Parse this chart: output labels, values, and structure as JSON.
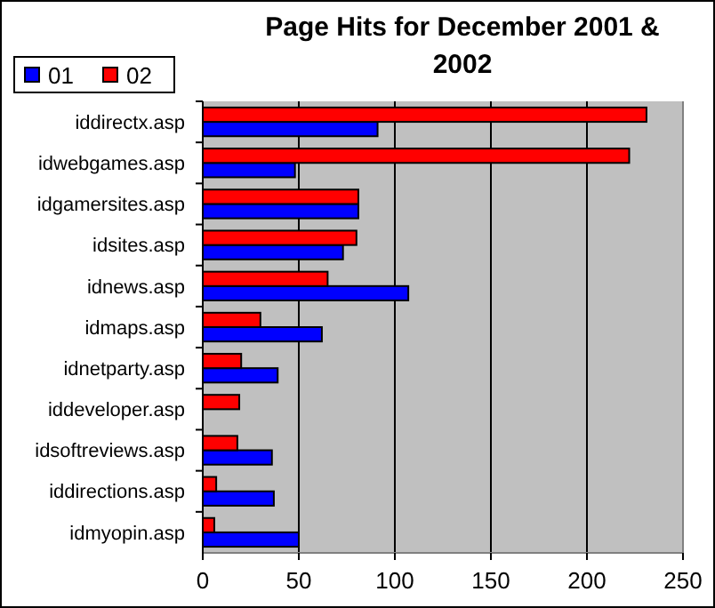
{
  "chart_data": {
    "type": "bar",
    "orientation": "horizontal",
    "title": "Page Hits for December 2001 & 2002",
    "categories": [
      "iddirectx.asp",
      "idwebgames.asp",
      "idgamersites.asp",
      "idsites.asp",
      "idnews.asp",
      "idmaps.asp",
      "idnetparty.asp",
      "iddeveloper.asp",
      "idsoftreviews.asp",
      "iddirections.asp",
      "idmyopin.asp"
    ],
    "series": [
      {
        "name": "01",
        "color": "#0000ff",
        "values": [
          91,
          48,
          81,
          73,
          107,
          62,
          39,
          null,
          36,
          37,
          50
        ]
      },
      {
        "name": "02",
        "color": "#ff0000",
        "values": [
          231,
          222,
          81,
          80,
          65,
          30,
          20,
          19,
          18,
          7,
          6
        ]
      }
    ],
    "xlim": [
      0,
      250
    ],
    "xticks": [
      0,
      50,
      100,
      150,
      200,
      250
    ],
    "grid": "x",
    "legend": "top left"
  }
}
